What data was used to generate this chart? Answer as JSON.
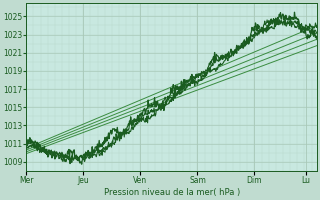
{
  "background_color": "#c0dcd0",
  "plot_bg_color": "#c8e8e0",
  "grid_color_major": "#a8c8b8",
  "grid_color_minor": "#b8d8c8",
  "line_color_dark": "#1a5c20",
  "line_color_mid": "#3a8c40",
  "ylabel": "Pression niveau de la mer( hPa )",
  "ylim": [
    1008.0,
    1026.5
  ],
  "yticks": [
    1009,
    1011,
    1013,
    1015,
    1017,
    1019,
    1021,
    1023,
    1025
  ],
  "x_days": [
    "Mer",
    "Jeu",
    "Ven",
    "Sam",
    "Dim",
    "Lu"
  ],
  "day_positions": [
    0,
    1,
    2,
    3,
    4,
    4.9
  ],
  "total_days": 5.1,
  "n_points": 500,
  "seed": 42
}
